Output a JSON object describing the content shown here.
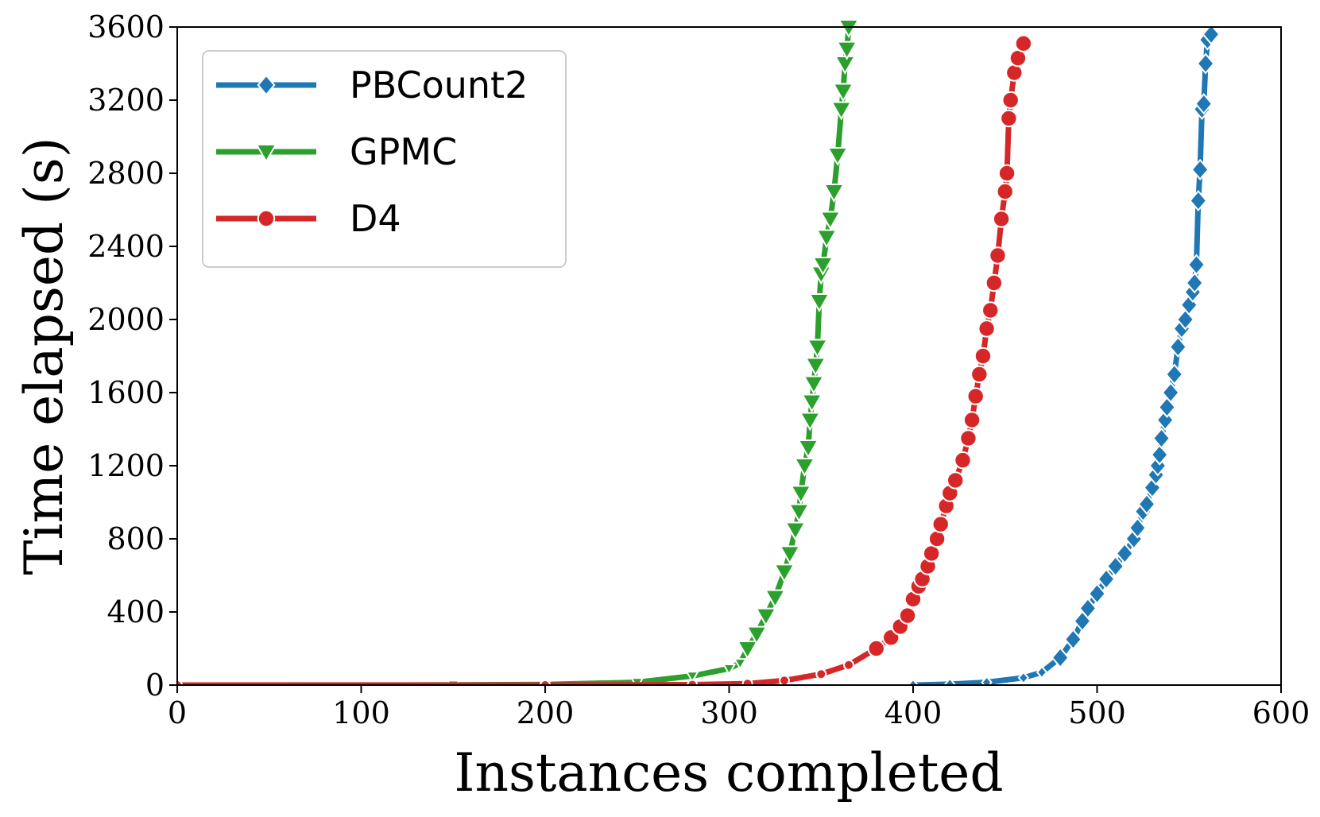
{
  "chart_data": {
    "type": "line",
    "title": "",
    "xlabel": "Instances completed",
    "ylabel": "Time elapsed (s)",
    "xlim": [
      0,
      600
    ],
    "ylim": [
      0,
      3600
    ],
    "xticks": [
      "0",
      "100",
      "200",
      "300",
      "400",
      "500",
      "600"
    ],
    "yticks": [
      "0",
      "400",
      "800",
      "1200",
      "1600",
      "2000",
      "2400",
      "2800",
      "3200",
      "3600"
    ],
    "grid": false,
    "legend_position": "top-left",
    "series": [
      {
        "name": "PBCount2",
        "color": "#1f77b4",
        "marker": "diamond",
        "points": [
          [
            400,
            0
          ],
          [
            420,
            5
          ],
          [
            440,
            15
          ],
          [
            460,
            40
          ],
          [
            470,
            70
          ],
          [
            480,
            150
          ],
          [
            487,
            250
          ],
          [
            492,
            350
          ],
          [
            495,
            420
          ],
          [
            500,
            500
          ],
          [
            505,
            580
          ],
          [
            510,
            650
          ],
          [
            515,
            720
          ],
          [
            520,
            800
          ],
          [
            522,
            860
          ],
          [
            525,
            950
          ],
          [
            527,
            990
          ],
          [
            530,
            1080
          ],
          [
            532,
            1150
          ],
          [
            533,
            1200
          ],
          [
            534,
            1260
          ],
          [
            535,
            1350
          ],
          [
            537,
            1450
          ],
          [
            538,
            1520
          ],
          [
            540,
            1600
          ],
          [
            542,
            1700
          ],
          [
            544,
            1850
          ],
          [
            546,
            1950
          ],
          [
            548,
            2000
          ],
          [
            550,
            2080
          ],
          [
            552,
            2150
          ],
          [
            553,
            2200
          ],
          [
            554,
            2300
          ],
          [
            555,
            2650
          ],
          [
            556,
            2820
          ],
          [
            557,
            3150
          ],
          [
            558,
            3180
          ],
          [
            559,
            3400
          ],
          [
            560,
            3530
          ],
          [
            562,
            3560
          ]
        ]
      },
      {
        "name": "GPMC",
        "color": "#2ca02c",
        "marker": "triangle-down",
        "points": [
          [
            0,
            0
          ],
          [
            150,
            1
          ],
          [
            200,
            3
          ],
          [
            250,
            15
          ],
          [
            280,
            50
          ],
          [
            300,
            90
          ],
          [
            306,
            120
          ],
          [
            310,
            200
          ],
          [
            315,
            280
          ],
          [
            320,
            380
          ],
          [
            325,
            480
          ],
          [
            330,
            620
          ],
          [
            333,
            720
          ],
          [
            336,
            850
          ],
          [
            338,
            950
          ],
          [
            339,
            1050
          ],
          [
            341,
            1200
          ],
          [
            343,
            1300
          ],
          [
            344,
            1450
          ],
          [
            345,
            1550
          ],
          [
            346,
            1650
          ],
          [
            347,
            1750
          ],
          [
            348,
            1850
          ],
          [
            349,
            2100
          ],
          [
            350,
            2250
          ],
          [
            351,
            2300
          ],
          [
            353,
            2450
          ],
          [
            355,
            2550
          ],
          [
            357,
            2700
          ],
          [
            359,
            2900
          ],
          [
            361,
            3150
          ],
          [
            362,
            3250
          ],
          [
            363,
            3400
          ],
          [
            364,
            3480
          ],
          [
            365,
            3600
          ]
        ]
      },
      {
        "name": "D4",
        "color": "#d62728",
        "marker": "circle",
        "points": [
          [
            0,
            0
          ],
          [
            200,
            0
          ],
          [
            280,
            2
          ],
          [
            310,
            8
          ],
          [
            330,
            25
          ],
          [
            350,
            60
          ],
          [
            365,
            110
          ],
          [
            380,
            200
          ],
          [
            388,
            260
          ],
          [
            393,
            320
          ],
          [
            397,
            380
          ],
          [
            400,
            470
          ],
          [
            403,
            540
          ],
          [
            405,
            580
          ],
          [
            408,
            650
          ],
          [
            410,
            720
          ],
          [
            413,
            800
          ],
          [
            415,
            880
          ],
          [
            418,
            980
          ],
          [
            420,
            1050
          ],
          [
            423,
            1120
          ],
          [
            427,
            1230
          ],
          [
            430,
            1350
          ],
          [
            432,
            1450
          ],
          [
            434,
            1580
          ],
          [
            436,
            1700
          ],
          [
            438,
            1800
          ],
          [
            440,
            1950
          ],
          [
            442,
            2050
          ],
          [
            444,
            2200
          ],
          [
            446,
            2350
          ],
          [
            448,
            2550
          ],
          [
            450,
            2700
          ],
          [
            451,
            2800
          ],
          [
            452,
            3100
          ],
          [
            453,
            3200
          ],
          [
            455,
            3350
          ],
          [
            457,
            3430
          ],
          [
            460,
            3510
          ]
        ]
      }
    ]
  }
}
